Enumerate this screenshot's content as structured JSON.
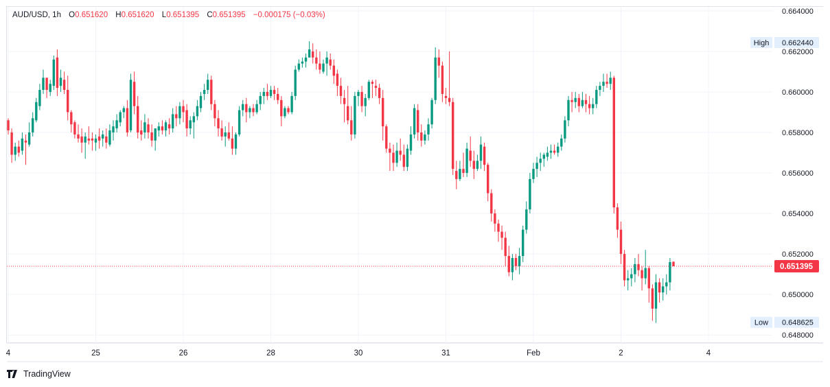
{
  "header": {
    "symbol": "AUD/USD",
    "interval": "1h",
    "open_label": "O",
    "open": "0.651620",
    "high_label": "H",
    "high": "0.651620",
    "low_label": "L",
    "low": "0.651395",
    "close_label": "C",
    "close": "0.651395",
    "change": "−0.000175 (−0.03%)"
  },
  "branding": {
    "name": "TradingView"
  },
  "colors": {
    "up": "#089981",
    "down": "#f23645",
    "grid": "#f0f3fa",
    "axis_text": "#131722",
    "label_bg": "#e3effd"
  },
  "chart_data": {
    "type": "candlestick",
    "ylim": [
      0.6476,
      0.6642
    ],
    "y_ticks": [
      "0.648000",
      "0.650000",
      "0.652000",
      "0.654000",
      "0.656000",
      "0.658000",
      "0.660000",
      "0.662000",
      "0.664000"
    ],
    "x_ticks": [
      {
        "label": "4",
        "index": 0
      },
      {
        "label": "25",
        "index": 25
      },
      {
        "label": "26",
        "index": 50
      },
      {
        "label": "28",
        "index": 75
      },
      {
        "label": "30",
        "index": 100
      },
      {
        "label": "31",
        "index": 125
      },
      {
        "label": "Feb",
        "index": 150
      },
      {
        "label": "2",
        "index": 175
      },
      {
        "label": "4",
        "index": 200
      }
    ],
    "high_marker": {
      "label": "High",
      "value": "0.662440",
      "y": 0.66244
    },
    "low_marker": {
      "label": "Low",
      "value": "0.648625",
      "y": 0.648625
    },
    "last_price": {
      "value": "0.651395",
      "y": 0.651395
    },
    "candles": [
      [
        0.6586,
        0.6587,
        0.6579,
        0.6581
      ],
      [
        0.658,
        0.6582,
        0.6565,
        0.6569
      ],
      [
        0.6569,
        0.6575,
        0.6566,
        0.6573
      ],
      [
        0.6573,
        0.6576,
        0.6568,
        0.657
      ],
      [
        0.6571,
        0.658,
        0.6569,
        0.6577
      ],
      [
        0.6576,
        0.6579,
        0.6564,
        0.6575
      ],
      [
        0.6574,
        0.6585,
        0.6573,
        0.658
      ],
      [
        0.658,
        0.659,
        0.6578,
        0.6587
      ],
      [
        0.6586,
        0.6597,
        0.6585,
        0.6595
      ],
      [
        0.6593,
        0.6604,
        0.6591,
        0.6601
      ],
      [
        0.6601,
        0.6611,
        0.6599,
        0.6607
      ],
      [
        0.6607,
        0.6607,
        0.6597,
        0.6601
      ],
      [
        0.66,
        0.6606,
        0.6598,
        0.6604
      ],
      [
        0.6603,
        0.6618,
        0.6601,
        0.6616
      ],
      [
        0.6617,
        0.6621,
        0.6598,
        0.6602
      ],
      [
        0.6603,
        0.6611,
        0.66,
        0.6607
      ],
      [
        0.6606,
        0.661,
        0.6599,
        0.6601
      ],
      [
        0.6601,
        0.6608,
        0.6586,
        0.659
      ],
      [
        0.659,
        0.6591,
        0.658,
        0.6584
      ],
      [
        0.6585,
        0.6586,
        0.6577,
        0.6579
      ],
      [
        0.6579,
        0.6584,
        0.6575,
        0.6577
      ],
      [
        0.6578,
        0.6582,
        0.657,
        0.6575
      ],
      [
        0.6575,
        0.658,
        0.6567,
        0.6578
      ],
      [
        0.6577,
        0.6583,
        0.6574,
        0.6576
      ],
      [
        0.6577,
        0.658,
        0.6571,
        0.6576
      ],
      [
        0.6575,
        0.6579,
        0.6571,
        0.6577
      ],
      [
        0.6578,
        0.6582,
        0.6572,
        0.6576
      ],
      [
        0.6577,
        0.6581,
        0.6573,
        0.6579
      ],
      [
        0.6578,
        0.6582,
        0.6572,
        0.6575
      ],
      [
        0.6574,
        0.6584,
        0.6573,
        0.6581
      ],
      [
        0.658,
        0.6586,
        0.6576,
        0.6583
      ],
      [
        0.6582,
        0.6589,
        0.658,
        0.6586
      ],
      [
        0.6585,
        0.6591,
        0.6583,
        0.659
      ],
      [
        0.659,
        0.6593,
        0.6587,
        0.6592
      ],
      [
        0.6592,
        0.6596,
        0.6578,
        0.658
      ],
      [
        0.6581,
        0.6609,
        0.658,
        0.6606
      ],
      [
        0.6605,
        0.661,
        0.6589,
        0.6593
      ],
      [
        0.6593,
        0.6598,
        0.6577,
        0.658
      ],
      [
        0.6581,
        0.6586,
        0.6576,
        0.6579
      ],
      [
        0.658,
        0.6589,
        0.6577,
        0.6585
      ],
      [
        0.6584,
        0.6587,
        0.6577,
        0.658
      ],
      [
        0.658,
        0.6584,
        0.6573,
        0.6576
      ],
      [
        0.6576,
        0.6582,
        0.6571,
        0.6582
      ],
      [
        0.6581,
        0.6585,
        0.6578,
        0.6583
      ],
      [
        0.6583,
        0.6586,
        0.6579,
        0.6581
      ],
      [
        0.6581,
        0.6586,
        0.6578,
        0.6585
      ],
      [
        0.6584,
        0.6587,
        0.6579,
        0.6582
      ],
      [
        0.6582,
        0.6592,
        0.658,
        0.6589
      ],
      [
        0.6589,
        0.6593,
        0.6583,
        0.6587
      ],
      [
        0.6587,
        0.6595,
        0.6584,
        0.6593
      ],
      [
        0.6593,
        0.6596,
        0.6585,
        0.659
      ],
      [
        0.6591,
        0.6594,
        0.6578,
        0.6582
      ],
      [
        0.6582,
        0.6588,
        0.6579,
        0.6586
      ],
      [
        0.6585,
        0.659,
        0.6577,
        0.6588
      ],
      [
        0.6588,
        0.6596,
        0.6586,
        0.6593
      ],
      [
        0.6592,
        0.66,
        0.659,
        0.6598
      ],
      [
        0.6599,
        0.6604,
        0.6596,
        0.6601
      ],
      [
        0.6601,
        0.6609,
        0.6599,
        0.6606
      ],
      [
        0.6606,
        0.6608,
        0.6591,
        0.6594
      ],
      [
        0.6594,
        0.6596,
        0.6583,
        0.6587
      ],
      [
        0.6587,
        0.6591,
        0.6578,
        0.6582
      ],
      [
        0.6582,
        0.6586,
        0.6576,
        0.6578
      ],
      [
        0.6578,
        0.6583,
        0.6573,
        0.658
      ],
      [
        0.658,
        0.6585,
        0.6576,
        0.6577
      ],
      [
        0.6577,
        0.6583,
        0.6569,
        0.6572
      ],
      [
        0.6572,
        0.658,
        0.6569,
        0.6579
      ],
      [
        0.6579,
        0.6593,
        0.6578,
        0.6591
      ],
      [
        0.6591,
        0.6596,
        0.6588,
        0.6594
      ],
      [
        0.6594,
        0.6597,
        0.6585,
        0.659
      ],
      [
        0.659,
        0.6593,
        0.6587,
        0.6592
      ],
      [
        0.6592,
        0.6594,
        0.6588,
        0.659
      ],
      [
        0.659,
        0.6596,
        0.6589,
        0.6594
      ],
      [
        0.6594,
        0.66,
        0.6591,
        0.6598
      ],
      [
        0.6598,
        0.6602,
        0.6594,
        0.66
      ],
      [
        0.66,
        0.6604,
        0.6596,
        0.6598
      ],
      [
        0.6598,
        0.6603,
        0.6597,
        0.6601
      ],
      [
        0.6601,
        0.6603,
        0.6596,
        0.6599
      ],
      [
        0.6599,
        0.6602,
        0.6594,
        0.6596
      ],
      [
        0.6596,
        0.6598,
        0.6583,
        0.6588
      ],
      [
        0.6588,
        0.6593,
        0.6587,
        0.6592
      ],
      [
        0.6592,
        0.6593,
        0.6589,
        0.659
      ],
      [
        0.659,
        0.66,
        0.6589,
        0.6598
      ],
      [
        0.6598,
        0.6613,
        0.6596,
        0.6611
      ],
      [
        0.6611,
        0.6616,
        0.661,
        0.6614
      ],
      [
        0.6614,
        0.6617,
        0.6612,
        0.6615
      ],
      [
        0.6615,
        0.6619,
        0.6612,
        0.6617
      ],
      [
        0.6617,
        0.6625,
        0.6617,
        0.6621
      ],
      [
        0.662,
        0.6624,
        0.6614,
        0.6617
      ],
      [
        0.6617,
        0.6621,
        0.6611,
        0.6614
      ],
      [
        0.6614,
        0.662,
        0.6609,
        0.6611
      ],
      [
        0.661,
        0.6616,
        0.6609,
        0.6614
      ],
      [
        0.6614,
        0.662,
        0.6608,
        0.6617
      ],
      [
        0.6616,
        0.6619,
        0.6611,
        0.6613
      ],
      [
        0.6613,
        0.6616,
        0.6604,
        0.6608
      ],
      [
        0.6609,
        0.6611,
        0.6598,
        0.6603
      ],
      [
        0.6603,
        0.6607,
        0.6594,
        0.6598
      ],
      [
        0.6597,
        0.6601,
        0.6585,
        0.6594
      ],
      [
        0.6593,
        0.6603,
        0.6584,
        0.6586
      ],
      [
        0.6586,
        0.6593,
        0.6576,
        0.6579
      ],
      [
        0.6579,
        0.66,
        0.6577,
        0.6598
      ],
      [
        0.6598,
        0.6601,
        0.6593,
        0.66
      ],
      [
        0.66,
        0.6603,
        0.659,
        0.6593
      ],
      [
        0.6593,
        0.6599,
        0.6588,
        0.6597
      ],
      [
        0.6597,
        0.6606,
        0.6596,
        0.6605
      ],
      [
        0.6605,
        0.6606,
        0.6597,
        0.6604
      ],
      [
        0.6603,
        0.6606,
        0.6598,
        0.6602
      ],
      [
        0.6602,
        0.6604,
        0.6594,
        0.6597
      ],
      [
        0.6597,
        0.6601,
        0.6576,
        0.6583
      ],
      [
        0.6583,
        0.6584,
        0.657,
        0.6572
      ],
      [
        0.6572,
        0.6575,
        0.6561,
        0.657
      ],
      [
        0.657,
        0.6574,
        0.6561,
        0.6565
      ],
      [
        0.6565,
        0.6575,
        0.6563,
        0.6571
      ],
      [
        0.6571,
        0.6577,
        0.6566,
        0.6569
      ],
      [
        0.6569,
        0.6574,
        0.6561,
        0.6563
      ],
      [
        0.6563,
        0.6574,
        0.6561,
        0.6572
      ],
      [
        0.6571,
        0.6583,
        0.6569,
        0.6579
      ],
      [
        0.6579,
        0.6594,
        0.6577,
        0.6592
      ],
      [
        0.6591,
        0.6594,
        0.6576,
        0.658
      ],
      [
        0.658,
        0.6584,
        0.6573,
        0.6576
      ],
      [
        0.6576,
        0.6581,
        0.6574,
        0.6579
      ],
      [
        0.6579,
        0.6587,
        0.6576,
        0.6584
      ],
      [
        0.6584,
        0.6597,
        0.6582,
        0.6596
      ],
      [
        0.6596,
        0.6622,
        0.6594,
        0.6617
      ],
      [
        0.6617,
        0.6621,
        0.6607,
        0.6613
      ],
      [
        0.6613,
        0.6615,
        0.6595,
        0.6599
      ],
      [
        0.6598,
        0.6602,
        0.6594,
        0.6597
      ],
      [
        0.6597,
        0.662,
        0.6593,
        0.6595
      ],
      [
        0.6595,
        0.6597,
        0.6559,
        0.6562
      ],
      [
        0.6561,
        0.6566,
        0.6552,
        0.6557
      ],
      [
        0.6557,
        0.6566,
        0.6556,
        0.6562
      ],
      [
        0.6562,
        0.657,
        0.6558,
        0.656
      ],
      [
        0.656,
        0.6575,
        0.6558,
        0.6572
      ],
      [
        0.6571,
        0.6578,
        0.6563,
        0.6566
      ],
      [
        0.6566,
        0.6571,
        0.6557,
        0.6562
      ],
      [
        0.6562,
        0.6569,
        0.6561,
        0.6566
      ],
      [
        0.6566,
        0.6578,
        0.6562,
        0.6574
      ],
      [
        0.6573,
        0.6575,
        0.6561,
        0.6564
      ],
      [
        0.6564,
        0.6565,
        0.6546,
        0.655
      ],
      [
        0.655,
        0.6552,
        0.6536,
        0.654
      ],
      [
        0.654,
        0.6542,
        0.6531,
        0.6535
      ],
      [
        0.6535,
        0.6537,
        0.6526,
        0.6531
      ],
      [
        0.6531,
        0.6534,
        0.6522,
        0.6528
      ],
      [
        0.6528,
        0.6531,
        0.6514,
        0.6519
      ],
      [
        0.6519,
        0.6524,
        0.6509,
        0.6511
      ],
      [
        0.6511,
        0.652,
        0.6507,
        0.6518
      ],
      [
        0.6518,
        0.652,
        0.6512,
        0.6514
      ],
      [
        0.6514,
        0.6523,
        0.651,
        0.6519
      ],
      [
        0.6519,
        0.6534,
        0.6516,
        0.6532
      ],
      [
        0.6532,
        0.6546,
        0.653,
        0.6542
      ],
      [
        0.6542,
        0.656,
        0.654,
        0.6557
      ],
      [
        0.6557,
        0.6565,
        0.6555,
        0.6562
      ],
      [
        0.6562,
        0.6568,
        0.6558,
        0.6565
      ],
      [
        0.6565,
        0.657,
        0.6561,
        0.6567
      ],
      [
        0.6567,
        0.657,
        0.6563,
        0.6569
      ],
      [
        0.6568,
        0.6573,
        0.6566,
        0.657
      ],
      [
        0.657,
        0.6574,
        0.6567,
        0.6571
      ],
      [
        0.6571,
        0.6574,
        0.6569,
        0.657
      ],
      [
        0.657,
        0.6575,
        0.6568,
        0.6573
      ],
      [
        0.6573,
        0.6579,
        0.6571,
        0.6577
      ],
      [
        0.6577,
        0.6588,
        0.6575,
        0.6586
      ],
      [
        0.6586,
        0.6598,
        0.6583,
        0.6596
      ],
      [
        0.6596,
        0.66,
        0.659,
        0.6595
      ],
      [
        0.6595,
        0.66,
        0.6592,
        0.6597
      ],
      [
        0.6597,
        0.6599,
        0.659,
        0.6593
      ],
      [
        0.6593,
        0.66,
        0.6592,
        0.6596
      ],
      [
        0.6596,
        0.6599,
        0.659,
        0.6594
      ],
      [
        0.6594,
        0.6598,
        0.6589,
        0.6592
      ],
      [
        0.6592,
        0.6597,
        0.6589,
        0.6594
      ],
      [
        0.6594,
        0.6603,
        0.6592,
        0.6601
      ],
      [
        0.6601,
        0.6605,
        0.6598,
        0.6603
      ],
      [
        0.6603,
        0.6609,
        0.66,
        0.6605
      ],
      [
        0.6605,
        0.6609,
        0.6602,
        0.6604
      ],
      [
        0.6604,
        0.661,
        0.6601,
        0.6607
      ],
      [
        0.6607,
        0.6608,
        0.654,
        0.6543
      ],
      [
        0.6543,
        0.6545,
        0.6528,
        0.6532
      ],
      [
        0.6532,
        0.6536,
        0.6515,
        0.652
      ],
      [
        0.652,
        0.6522,
        0.6504,
        0.6507
      ],
      [
        0.6507,
        0.6512,
        0.6502,
        0.6508
      ],
      [
        0.6508,
        0.6513,
        0.6504,
        0.651
      ],
      [
        0.651,
        0.6518,
        0.6506,
        0.6515
      ],
      [
        0.6515,
        0.652,
        0.6509,
        0.6512
      ],
      [
        0.6512,
        0.6514,
        0.6502,
        0.6508
      ],
      [
        0.6508,
        0.6522,
        0.6505,
        0.6513
      ],
      [
        0.6513,
        0.6514,
        0.6496,
        0.6503
      ],
      [
        0.6503,
        0.6505,
        0.6487,
        0.6493
      ],
      [
        0.6493,
        0.651,
        0.6486,
        0.6506
      ],
      [
        0.6506,
        0.6508,
        0.6496,
        0.6501
      ],
      [
        0.6501,
        0.6508,
        0.6497,
        0.6504
      ],
      [
        0.6504,
        0.651,
        0.65,
        0.6506
      ],
      [
        0.6506,
        0.6518,
        0.6502,
        0.6516
      ],
      [
        0.65162,
        0.65162,
        0.651395,
        0.651395
      ]
    ]
  }
}
